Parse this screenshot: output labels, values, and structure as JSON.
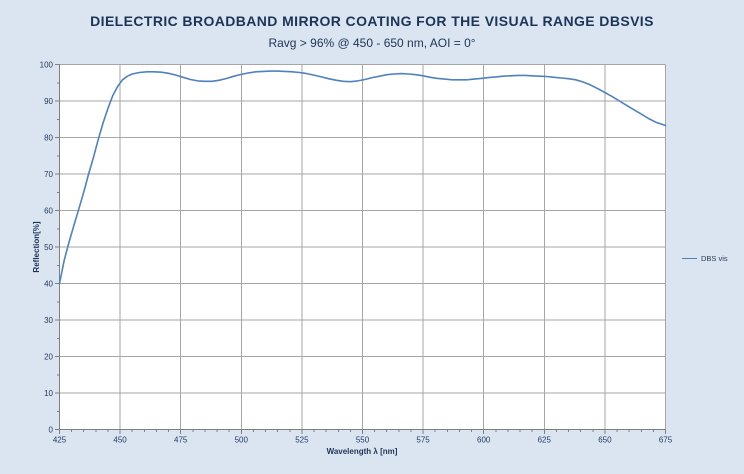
{
  "chart_data": {
    "type": "line",
    "title": "DIELECTRIC BROADBAND MIRROR COATING FOR THE VISUAL RANGE DBSVIS",
    "subtitle": "Ravg > 96% @ 450 - 650 nm, AOI = 0°",
    "xlabel": "Wavelength λ [nm]",
    "ylabel": "Reflection[%]",
    "xlim": [
      425,
      675
    ],
    "ylim": [
      0,
      100
    ],
    "x_major_ticks": [
      425,
      450,
      475,
      500,
      525,
      550,
      575,
      600,
      625,
      650,
      675
    ],
    "x_minor_step": 5,
    "y_major_ticks": [
      0,
      10,
      20,
      30,
      40,
      50,
      60,
      70,
      80,
      90,
      100
    ],
    "y_minor_step": 5,
    "grid": "major-on",
    "legend": {
      "position": "right",
      "entries": [
        {
          "label": "DBS vis",
          "color": "#4f81bd"
        }
      ]
    },
    "series": [
      {
        "name": "DBS vis",
        "color": "#4f81bd",
        "points": [
          [
            425,
            40.0
          ],
          [
            427,
            46.5
          ],
          [
            429,
            51.5
          ],
          [
            431,
            56.0
          ],
          [
            433,
            60.5
          ],
          [
            435,
            65.0
          ],
          [
            437,
            70.0
          ],
          [
            439,
            74.5
          ],
          [
            441,
            79.5
          ],
          [
            443,
            84.0
          ],
          [
            445,
            88.0
          ],
          [
            447,
            91.5
          ],
          [
            449,
            94.0
          ],
          [
            451,
            95.8
          ],
          [
            453,
            96.8
          ],
          [
            455,
            97.4
          ],
          [
            458,
            97.8
          ],
          [
            461,
            98.0
          ],
          [
            464,
            98.0
          ],
          [
            467,
            97.9
          ],
          [
            470,
            97.6
          ],
          [
            473,
            97.1
          ],
          [
            476,
            96.5
          ],
          [
            479,
            95.9
          ],
          [
            482,
            95.5
          ],
          [
            485,
            95.4
          ],
          [
            488,
            95.4
          ],
          [
            491,
            95.7
          ],
          [
            494,
            96.2
          ],
          [
            497,
            96.8
          ],
          [
            500,
            97.3
          ],
          [
            503,
            97.7
          ],
          [
            506,
            98.0
          ],
          [
            509,
            98.1
          ],
          [
            512,
            98.2
          ],
          [
            515,
            98.2
          ],
          [
            518,
            98.1
          ],
          [
            521,
            98.0
          ],
          [
            524,
            97.8
          ],
          [
            527,
            97.5
          ],
          [
            530,
            97.1
          ],
          [
            533,
            96.6
          ],
          [
            536,
            96.1
          ],
          [
            539,
            95.7
          ],
          [
            542,
            95.4
          ],
          [
            545,
            95.3
          ],
          [
            548,
            95.5
          ],
          [
            551,
            95.9
          ],
          [
            554,
            96.4
          ],
          [
            557,
            96.8
          ],
          [
            560,
            97.2
          ],
          [
            563,
            97.4
          ],
          [
            566,
            97.5
          ],
          [
            569,
            97.4
          ],
          [
            572,
            97.2
          ],
          [
            575,
            96.9
          ],
          [
            578,
            96.5
          ],
          [
            581,
            96.2
          ],
          [
            584,
            96.0
          ],
          [
            587,
            95.8
          ],
          [
            590,
            95.8
          ],
          [
            593,
            95.8
          ],
          [
            596,
            96.0
          ],
          [
            599,
            96.2
          ],
          [
            602,
            96.4
          ],
          [
            605,
            96.6
          ],
          [
            608,
            96.8
          ],
          [
            611,
            96.9
          ],
          [
            614,
            97.0
          ],
          [
            617,
            97.0
          ],
          [
            620,
            96.9
          ],
          [
            623,
            96.8
          ],
          [
            626,
            96.7
          ],
          [
            629,
            96.5
          ],
          [
            632,
            96.3
          ],
          [
            635,
            96.1
          ],
          [
            638,
            95.8
          ],
          [
            641,
            95.2
          ],
          [
            644,
            94.4
          ],
          [
            647,
            93.4
          ],
          [
            650,
            92.3
          ],
          [
            653,
            91.2
          ],
          [
            656,
            90.0
          ],
          [
            659,
            88.8
          ],
          [
            662,
            87.6
          ],
          [
            665,
            86.4
          ],
          [
            668,
            85.2
          ],
          [
            671,
            84.2
          ],
          [
            675,
            83.3
          ]
        ]
      }
    ]
  },
  "colors": {
    "background": "#dbe5f1",
    "plot_background": "#ffffff",
    "gridline": "#a6a6a6",
    "axis_line": "#7f7f7f",
    "title_text": "#1c3557",
    "tick_text": "#243a5e",
    "series_line": "#4f81bd"
  }
}
